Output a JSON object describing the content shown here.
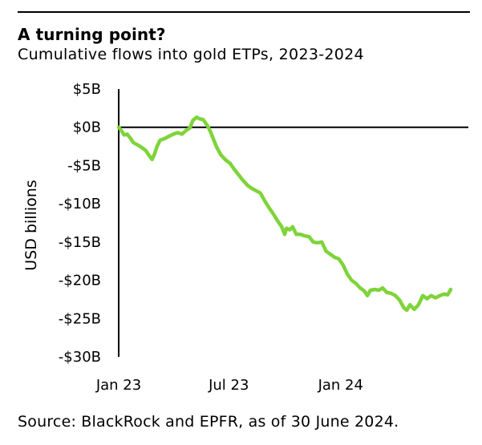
{
  "header": {
    "title": "A turning point?",
    "subtitle": "Cumulative flows into gold ETPs, 2023-2024"
  },
  "footer": {
    "source": "Source: BlackRock and EPFR, as of 30 June 2024."
  },
  "colors": {
    "series": "#7ed43a",
    "axis": "#000000"
  },
  "chart_data": {
    "type": "line",
    "title": "A turning point?",
    "subtitle": "Cumulative flows into gold ETPs, 2023-2024",
    "xlabel": "",
    "ylabel": "USD billions",
    "ylim": [
      -30,
      5
    ],
    "yticks": [
      5,
      0,
      -5,
      -10,
      -15,
      -20,
      -25,
      -30
    ],
    "ytick_labels": [
      "$5B",
      "$0B",
      "-$5B",
      "-$10B",
      "-$15B",
      "-$20B",
      "-$25B",
      "-$30B"
    ],
    "xlim": [
      "2023-01-01",
      "2024-06-30"
    ],
    "xticks": [
      "2023-01-01",
      "2023-07-01",
      "2024-01-01"
    ],
    "xtick_labels": [
      "Jan 23",
      "Jul 23",
      "Jan 24"
    ],
    "grid": false,
    "zero_line": true,
    "series": [
      {
        "name": "",
        "points": [
          [
            "2023-01-01",
            0.0
          ],
          [
            "2023-01-05",
            -0.4
          ],
          [
            "2023-01-10",
            -1.0
          ],
          [
            "2023-01-15",
            -0.9
          ],
          [
            "2023-01-20",
            -1.4
          ],
          [
            "2023-01-25",
            -2.0
          ],
          [
            "2023-02-01",
            -2.3
          ],
          [
            "2023-02-07",
            -2.6
          ],
          [
            "2023-02-14",
            -3.0
          ],
          [
            "2023-02-21",
            -3.8
          ],
          [
            "2023-02-25",
            -4.2
          ],
          [
            "2023-03-01",
            -3.5
          ],
          [
            "2023-03-05",
            -2.5
          ],
          [
            "2023-03-10",
            -1.7
          ],
          [
            "2023-03-17",
            -1.5
          ],
          [
            "2023-03-24",
            -1.2
          ],
          [
            "2023-04-01",
            -0.9
          ],
          [
            "2023-04-08",
            -0.7
          ],
          [
            "2023-04-15",
            -0.9
          ],
          [
            "2023-04-22",
            -0.4
          ],
          [
            "2023-04-28",
            -0.1
          ],
          [
            "2023-05-03",
            0.9
          ],
          [
            "2023-05-09",
            1.3
          ],
          [
            "2023-05-14",
            1.1
          ],
          [
            "2023-05-20",
            1.0
          ],
          [
            "2023-05-27",
            0.2
          ],
          [
            "2023-06-01",
            -0.6
          ],
          [
            "2023-06-06",
            -1.6
          ],
          [
            "2023-06-11",
            -2.6
          ],
          [
            "2023-06-18",
            -3.6
          ],
          [
            "2023-06-26",
            -4.3
          ],
          [
            "2023-07-03",
            -4.7
          ],
          [
            "2023-07-10",
            -5.5
          ],
          [
            "2023-07-17",
            -6.2
          ],
          [
            "2023-07-24",
            -6.9
          ],
          [
            "2023-08-01",
            -7.6
          ],
          [
            "2023-08-08",
            -8.0
          ],
          [
            "2023-08-15",
            -8.3
          ],
          [
            "2023-08-22",
            -8.6
          ],
          [
            "2023-08-29",
            -9.6
          ],
          [
            "2023-09-05",
            -10.5
          ],
          [
            "2023-09-12",
            -11.3
          ],
          [
            "2023-09-19",
            -12.2
          ],
          [
            "2023-09-26",
            -13.0
          ],
          [
            "2023-10-01",
            -14.0
          ],
          [
            "2023-10-04",
            -13.2
          ],
          [
            "2023-10-09",
            -13.4
          ],
          [
            "2023-10-14",
            -13.0
          ],
          [
            "2023-10-20",
            -14.0
          ],
          [
            "2023-10-27",
            -14.0
          ],
          [
            "2023-11-03",
            -14.2
          ],
          [
            "2023-11-10",
            -14.3
          ],
          [
            "2023-11-17",
            -15.0
          ],
          [
            "2023-11-24",
            -15.1
          ],
          [
            "2023-12-01",
            -15.0
          ],
          [
            "2023-12-08",
            -16.2
          ],
          [
            "2023-12-15",
            -16.6
          ],
          [
            "2023-12-22",
            -17.0
          ],
          [
            "2023-12-29",
            -17.2
          ],
          [
            "2024-01-05",
            -18.0
          ],
          [
            "2024-01-12",
            -19.2
          ],
          [
            "2024-01-19",
            -20.0
          ],
          [
            "2024-01-26",
            -20.4
          ],
          [
            "2024-02-02",
            -21.0
          ],
          [
            "2024-02-09",
            -21.4
          ],
          [
            "2024-02-14",
            -22.0
          ],
          [
            "2024-02-19",
            -21.3
          ],
          [
            "2024-02-26",
            -21.2
          ],
          [
            "2024-03-04",
            -21.3
          ],
          [
            "2024-03-10",
            -21.0
          ],
          [
            "2024-03-17",
            -21.6
          ],
          [
            "2024-03-24",
            -21.7
          ],
          [
            "2024-03-31",
            -22.0
          ],
          [
            "2024-04-07",
            -22.6
          ],
          [
            "2024-04-14",
            -23.6
          ],
          [
            "2024-04-19",
            -23.9
          ],
          [
            "2024-04-24",
            -23.2
          ],
          [
            "2024-05-01",
            -23.8
          ],
          [
            "2024-05-08",
            -23.2
          ],
          [
            "2024-05-15",
            -22.0
          ],
          [
            "2024-05-22",
            -22.4
          ],
          [
            "2024-05-29",
            -22.0
          ],
          [
            "2024-06-05",
            -22.3
          ],
          [
            "2024-06-12",
            -22.0
          ],
          [
            "2024-06-19",
            -21.8
          ],
          [
            "2024-06-25",
            -21.9
          ],
          [
            "2024-06-30",
            -21.2
          ]
        ]
      }
    ]
  }
}
